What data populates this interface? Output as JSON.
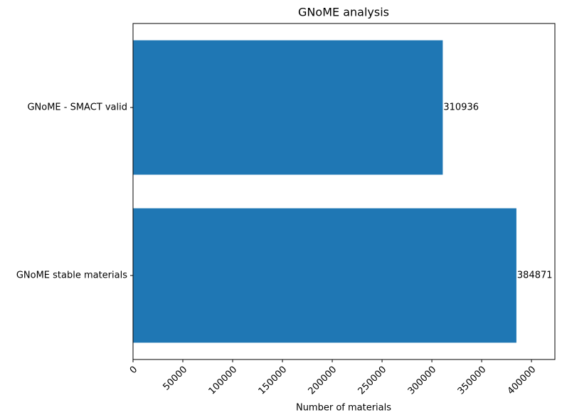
{
  "chart_data": {
    "type": "barh",
    "title": "GNoME analysis",
    "xlabel": "Number of materials",
    "categories": [
      "GNoME stable materials",
      "GNoME - SMACT valid"
    ],
    "values": [
      384871,
      310936
    ],
    "color": "#1f77b4",
    "xlim": [
      0,
      423500
    ],
    "xticks": [
      0,
      50000,
      100000,
      150000,
      200000,
      250000,
      300000,
      350000,
      400000
    ],
    "data_labels": true
  }
}
